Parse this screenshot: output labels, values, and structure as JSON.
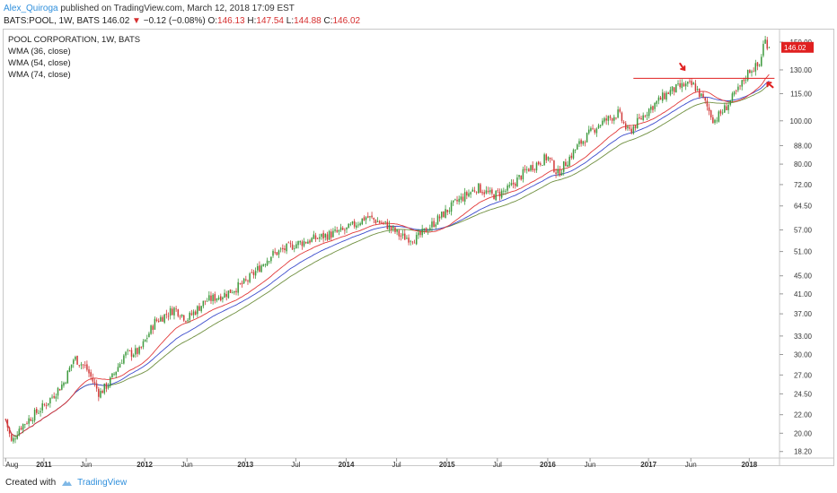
{
  "header": {
    "author": "Alex_Quiroga",
    "published": "published on TradingView.com, March 12, 2018 17:09 EST"
  },
  "quote": {
    "symbol": "BATS:POOL, 1W, BATS",
    "last": "146.02",
    "change_arrow": "▼",
    "change": "−0.12 (−0.08%)",
    "open_label": "O:",
    "open": "146.13",
    "high_label": "H:",
    "high": "147.54",
    "low_label": "L:",
    "low": "144.88",
    "close_label": "C:",
    "close": "146.02"
  },
  "footer": {
    "created_with": "Created with",
    "brand": "TradingView"
  },
  "colors": {
    "up": "#3e9a3e",
    "down": "#d23a3a",
    "wma36": "#e23a3a",
    "wma54": "#3b4bcc",
    "wma74": "#6f8f3f",
    "annotation": "#e02020",
    "price_tag": "#e02020"
  },
  "icons": {
    "brand_logo": "tradingview-cloud-icon"
  },
  "chart_data": {
    "type": "candlestick",
    "title": "POOL CORPORATION, 1W, BATS",
    "legend": [
      "WMA (36, close)",
      "WMA (54, close)",
      "WMA (74, close)"
    ],
    "y_scale": "log",
    "ylim": [
      17.6,
      160
    ],
    "y_ticks": [
      18.2,
      20.0,
      22.0,
      24.5,
      27.0,
      30.0,
      33.0,
      37.0,
      41.0,
      45.0,
      51.0,
      57.0,
      64.5,
      72.0,
      80.0,
      88.0,
      100.0,
      115.0,
      130.0,
      150.0
    ],
    "y_tick_labels": [
      "18.20",
      "20.00",
      "22.00",
      "24.50",
      "27.00",
      "30.00",
      "33.00",
      "37.00",
      "41.00",
      "45.00",
      "51.00",
      "57.00",
      "64.50",
      "72.00",
      "80.00",
      "88.00",
      "100.00",
      "115.00",
      "130.00",
      "150.00"
    ],
    "xlim": [
      2010.6,
      2018.3
    ],
    "x_ticks": [
      {
        "t": 2010.62,
        "label": "Aug",
        "year": false
      },
      {
        "t": 2011.0,
        "label": "2011",
        "year": true
      },
      {
        "t": 2011.42,
        "label": "Jun",
        "year": false
      },
      {
        "t": 2012.0,
        "label": "2012",
        "year": true
      },
      {
        "t": 2012.42,
        "label": "Jun",
        "year": false
      },
      {
        "t": 2013.0,
        "label": "2013",
        "year": true
      },
      {
        "t": 2013.5,
        "label": "Jul",
        "year": false
      },
      {
        "t": 2014.0,
        "label": "2014",
        "year": true
      },
      {
        "t": 2014.5,
        "label": "Jul",
        "year": false
      },
      {
        "t": 2015.0,
        "label": "2015",
        "year": true
      },
      {
        "t": 2015.5,
        "label": "Jul",
        "year": false
      },
      {
        "t": 2016.0,
        "label": "2016",
        "year": true
      },
      {
        "t": 2016.42,
        "label": "Jun",
        "year": false
      },
      {
        "t": 2017.0,
        "label": "2017",
        "year": true
      },
      {
        "t": 2017.42,
        "label": "Jun",
        "year": false
      },
      {
        "t": 2018.0,
        "label": "2018",
        "year": true
      }
    ],
    "anchors": [
      [
        2010.62,
        21.5
      ],
      [
        2010.68,
        19.0
      ],
      [
        2010.75,
        20.5
      ],
      [
        2010.9,
        22.0
      ],
      [
        2011.0,
        23.0
      ],
      [
        2011.2,
        26.0
      ],
      [
        2011.3,
        29.5
      ],
      [
        2011.42,
        28.0
      ],
      [
        2011.55,
        24.5
      ],
      [
        2011.65,
        26.0
      ],
      [
        2011.8,
        30.0
      ],
      [
        2011.95,
        30.5
      ],
      [
        2012.1,
        35.5
      ],
      [
        2012.3,
        38.0
      ],
      [
        2012.42,
        36.0
      ],
      [
        2012.6,
        39.5
      ],
      [
        2012.8,
        41.0
      ],
      [
        2013.0,
        43.5
      ],
      [
        2013.25,
        50.0
      ],
      [
        2013.5,
        53.0
      ],
      [
        2013.75,
        55.0
      ],
      [
        2014.0,
        57.0
      ],
      [
        2014.2,
        61.0
      ],
      [
        2014.4,
        58.5
      ],
      [
        2014.55,
        55.0
      ],
      [
        2014.7,
        54.5
      ],
      [
        2014.9,
        60.0
      ],
      [
        2015.1,
        66.0
      ],
      [
        2015.3,
        71.0
      ],
      [
        2015.45,
        68.0
      ],
      [
        2015.6,
        70.0
      ],
      [
        2015.8,
        78.0
      ],
      [
        2016.0,
        83.0
      ],
      [
        2016.1,
        76.0
      ],
      [
        2016.3,
        88.0
      ],
      [
        2016.5,
        98.0
      ],
      [
        2016.7,
        104.0
      ],
      [
        2016.8,
        94.0
      ],
      [
        2017.0,
        106.0
      ],
      [
        2017.2,
        116.0
      ],
      [
        2017.35,
        120.0
      ],
      [
        2017.45,
        120.0
      ],
      [
        2017.55,
        111.0
      ],
      [
        2017.65,
        100.0
      ],
      [
        2017.75,
        106.0
      ],
      [
        2017.9,
        118.0
      ],
      [
        2018.0,
        130.0
      ],
      [
        2018.1,
        133.0
      ],
      [
        2018.15,
        152.0
      ],
      [
        2018.2,
        146.0
      ]
    ],
    "last_price": 146.02,
    "last_price_label": "146.02",
    "resistance": {
      "value": 124.5,
      "t_start": 2016.85,
      "t_end": 2018.25
    },
    "arrows": [
      {
        "t": 2017.34,
        "price": 130
      },
      {
        "t": 2018.18,
        "price": 120
      }
    ]
  }
}
